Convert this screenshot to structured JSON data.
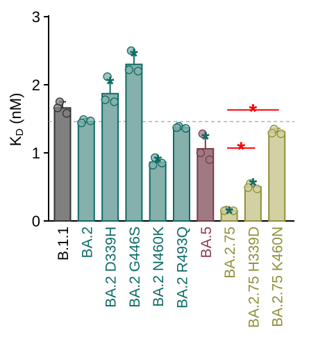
{
  "chart_data": {
    "type": "bar",
    "ylabel_main": "K",
    "ylabel_sub": "D",
    "ylabel_unit": " (nM)",
    "ylim": [
      0,
      3
    ],
    "yticks": [
      "0",
      "1",
      "2",
      "3"
    ],
    "reference_line": 1.46,
    "categories": [
      {
        "label": "B.1.1",
        "value": 1.66,
        "err": 0.09,
        "points": [
          1.75,
          1.66,
          1.58
        ],
        "fill": "#808080",
        "edge": "#333333",
        "label_color": "#000000",
        "star": false
      },
      {
        "label": "BA.2",
        "value": 1.46,
        "err": 0.04,
        "points": [
          1.49,
          1.44,
          1.47
        ],
        "fill": "#85b0ab",
        "edge": "#0e6b66",
        "label_color": "#0e6b66",
        "star": false
      },
      {
        "label": "BA.2 D339H",
        "value": 1.87,
        "err": 0.2,
        "points": [
          2.12,
          1.78,
          1.75
        ],
        "fill": "#85b0ab",
        "edge": "#0e6b66",
        "label_color": "#0e6b66",
        "star": true
      },
      {
        "label": "BA.2 G446S",
        "value": 2.3,
        "err": 0.18,
        "points": [
          2.5,
          2.22,
          2.2
        ],
        "fill": "#85b0ab",
        "edge": "#0e6b66",
        "label_color": "#0e6b66",
        "star": true
      },
      {
        "label": "BA.2 N460K",
        "value": 0.86,
        "err": 0.07,
        "points": [
          0.93,
          0.82,
          0.85
        ],
        "fill": "#85b0ab",
        "edge": "#0e6b66",
        "label_color": "#0e6b66",
        "star": true
      },
      {
        "label": "BA.2 R493Q",
        "value": 1.37,
        "err": 0.03,
        "points": [
          1.39,
          1.37,
          1.36
        ],
        "fill": "#85b0ab",
        "edge": "#0e6b66",
        "label_color": "#0e6b66",
        "star": false
      },
      {
        "label": "BA.5",
        "value": 1.06,
        "err": 0.2,
        "points": [
          1.28,
          1.0,
          0.9
        ],
        "fill": "#a07a82",
        "edge": "#7a3a48",
        "label_color": "#8a3a4e",
        "star": true
      },
      {
        "label": "BA.2.75",
        "value": 0.15,
        "err": 0.02,
        "points": [
          0.16,
          0.15,
          0.15
        ],
        "fill": "#d3d1a4",
        "edge": "#8f8f3a",
        "label_color": "#8f8f3a",
        "star": true
      },
      {
        "label": "BA.2.75 H339D",
        "value": 0.5,
        "err": 0.08,
        "points": [
          0.55,
          0.49,
          0.47
        ],
        "fill": "#d3d1a4",
        "edge": "#8f8f3a",
        "label_color": "#8f8f3a",
        "star": true
      },
      {
        "label": "BA.2.75 K460N",
        "value": 1.31,
        "err": 0.05,
        "points": [
          1.35,
          1.29,
          1.28
        ],
        "fill": "#d3d1a4",
        "edge": "#8f8f3a",
        "label_color": "#8f8f3a",
        "star": false
      }
    ],
    "star_color": "#0e6b66",
    "comparisons": [
      {
        "from": 7,
        "to": 8,
        "level": 1.07,
        "label": "*",
        "color": "#ff0000"
      },
      {
        "from": 7,
        "to": 9,
        "level": 1.63,
        "label": "*",
        "color": "#ff0000"
      }
    ]
  }
}
